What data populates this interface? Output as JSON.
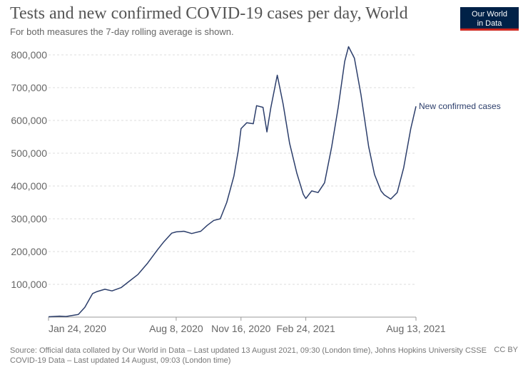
{
  "header": {
    "title": "Tests and new confirmed COVID-19 cases per day, World",
    "subtitle": "For both measures the 7-day rolling average is shown.",
    "logo_line1": "Our World",
    "logo_line2": "in Data"
  },
  "footer": {
    "source_line1": "Source: Official data collated by Our World in Data – Last updated 13 August 2021, 09:30 (London time), Johns Hopkins University CSSE",
    "source_line2": "COVID-19 Data – Last updated 14 August, 09:03 (London time)",
    "license": "CC BY"
  },
  "colors": {
    "line": "#2c3e6b",
    "grid": "#dddddd",
    "axis_text": "#666666",
    "logo_bg": "#002147",
    "logo_accent": "#ce261e"
  },
  "chart_data": {
    "type": "line",
    "title": "Tests and new confirmed COVID-19 cases per day, World",
    "subtitle": "For both measures the 7-day rolling average is shown.",
    "xlabel": "",
    "ylabel": "",
    "ylim": [
      0,
      850000
    ],
    "grid": true,
    "y_ticks": [
      {
        "value": 100000,
        "label": "100,000"
      },
      {
        "value": 200000,
        "label": "200,000"
      },
      {
        "value": 300000,
        "label": "300,000"
      },
      {
        "value": 400000,
        "label": "400,000"
      },
      {
        "value": 500000,
        "label": "500,000"
      },
      {
        "value": 600000,
        "label": "600,000"
      },
      {
        "value": 700000,
        "label": "700,000"
      },
      {
        "value": 800000,
        "label": "800,000"
      }
    ],
    "x_ticks": [
      {
        "date": "2020-01-24",
        "label": "Jan 24, 2020"
      },
      {
        "date": "2020-08-08",
        "label": "Aug 8, 2020"
      },
      {
        "date": "2020-11-16",
        "label": "Nov 16, 2020"
      },
      {
        "date": "2021-02-24",
        "label": "Feb 24, 2021"
      },
      {
        "date": "2021-08-13",
        "label": "Aug 13, 2021"
      }
    ],
    "series": [
      {
        "name": "New confirmed cases",
        "x": [
          "2020-01-24",
          "2020-02-10",
          "2020-02-20",
          "2020-03-10",
          "2020-03-20",
          "2020-04-01",
          "2020-04-08",
          "2020-04-20",
          "2020-05-01",
          "2020-05-15",
          "2020-05-28",
          "2020-06-10",
          "2020-06-25",
          "2020-07-10",
          "2020-07-20",
          "2020-08-01",
          "2020-08-08",
          "2020-08-20",
          "2020-09-01",
          "2020-09-15",
          "2020-09-25",
          "2020-10-05",
          "2020-10-15",
          "2020-10-25",
          "2020-11-05",
          "2020-11-12",
          "2020-11-16",
          "2020-11-25",
          "2020-12-05",
          "2020-12-10",
          "2020-12-20",
          "2020-12-26",
          "2021-01-01",
          "2021-01-11",
          "2021-01-20",
          "2021-01-30",
          "2021-02-10",
          "2021-02-20",
          "2021-02-24",
          "2021-03-05",
          "2021-03-15",
          "2021-03-25",
          "2021-04-05",
          "2021-04-15",
          "2021-04-25",
          "2021-05-01",
          "2021-05-10",
          "2021-05-20",
          "2021-06-01",
          "2021-06-10",
          "2021-06-20",
          "2021-06-25",
          "2021-07-05",
          "2021-07-15",
          "2021-07-25",
          "2021-08-05",
          "2021-08-13"
        ],
        "values": [
          1000,
          3000,
          2000,
          8000,
          30000,
          72000,
          78000,
          85000,
          80000,
          90000,
          110000,
          130000,
          165000,
          205000,
          230000,
          256000,
          260000,
          262000,
          255000,
          262000,
          280000,
          295000,
          300000,
          350000,
          430000,
          510000,
          575000,
          593000,
          590000,
          645000,
          640000,
          565000,
          638000,
          738000,
          650000,
          530000,
          440000,
          375000,
          362000,
          385000,
          380000,
          410000,
          520000,
          640000,
          780000,
          825000,
          790000,
          680000,
          520000,
          435000,
          385000,
          373000,
          360000,
          380000,
          455000,
          575000,
          643000
        ]
      }
    ]
  }
}
